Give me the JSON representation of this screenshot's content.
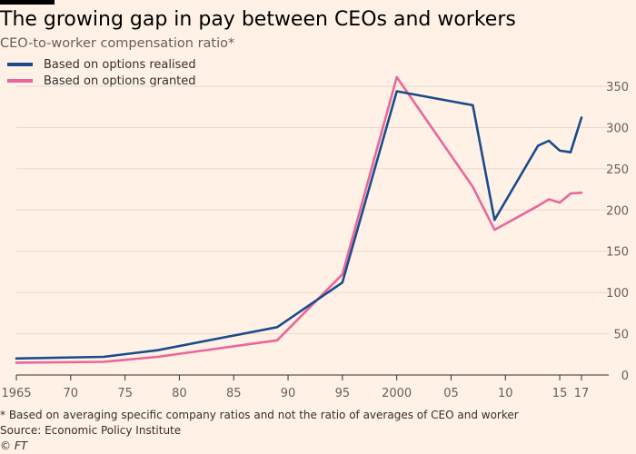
{
  "header": {
    "title": "The growing gap in pay between CEOs and workers",
    "subtitle": "CEO-to-worker compensation ratio*"
  },
  "legend": [
    {
      "label": "Based on options realised",
      "color": "#1a4c8c"
    },
    {
      "label": "Based on options granted",
      "color": "#e8679a"
    }
  ],
  "footer": {
    "footnote": "* Based on averaging specific company ratios and not the ratio of averages of CEO and worker",
    "source": "Source: Economic Policy Institute",
    "copyright": "© FT"
  },
  "chart_data": {
    "type": "line",
    "title": "The growing gap in pay between CEOs and workers",
    "subtitle": "CEO-to-worker compensation ratio*",
    "xlabel": "",
    "ylabel": "",
    "xlim": [
      1965,
      2017
    ],
    "ylim": [
      0,
      350
    ],
    "y_ticks": [
      0,
      50,
      100,
      150,
      200,
      250,
      300,
      350
    ],
    "y_tick_labels": [
      "0",
      "50",
      "100",
      "150",
      "200",
      "250",
      "300",
      "350"
    ],
    "x_ticks": [
      1965,
      1970,
      1975,
      1980,
      1985,
      1990,
      1995,
      2000,
      2005,
      2010,
      2015,
      2017
    ],
    "x_tick_labels": [
      "1965",
      "70",
      "75",
      "80",
      "85",
      "90",
      "95",
      "2000",
      "05",
      "10",
      "15",
      "17"
    ],
    "grid": "horizontal",
    "y_axis_position": "right",
    "legend_position": "top-left",
    "series": [
      {
        "name": "Based on options realised",
        "color": "#1a4c8c",
        "points": [
          [
            1965,
            20
          ],
          [
            1973,
            22
          ],
          [
            1978,
            30
          ],
          [
            1989,
            58
          ],
          [
            1995,
            112
          ],
          [
            2000,
            344
          ],
          [
            2007,
            327
          ],
          [
            2009,
            188
          ],
          [
            2013,
            278
          ],
          [
            2014,
            284
          ],
          [
            2015,
            272
          ],
          [
            2016,
            270
          ],
          [
            2017,
            312
          ]
        ]
      },
      {
        "name": "Based on options granted",
        "color": "#e8679a",
        "points": [
          [
            1965,
            15
          ],
          [
            1973,
            16
          ],
          [
            1978,
            22
          ],
          [
            1989,
            42
          ],
          [
            1995,
            122
          ],
          [
            2000,
            361
          ],
          [
            2007,
            228
          ],
          [
            2009,
            176
          ],
          [
            2013,
            205
          ],
          [
            2014,
            213
          ],
          [
            2015,
            209
          ],
          [
            2016,
            220
          ],
          [
            2017,
            221
          ]
        ]
      }
    ]
  }
}
